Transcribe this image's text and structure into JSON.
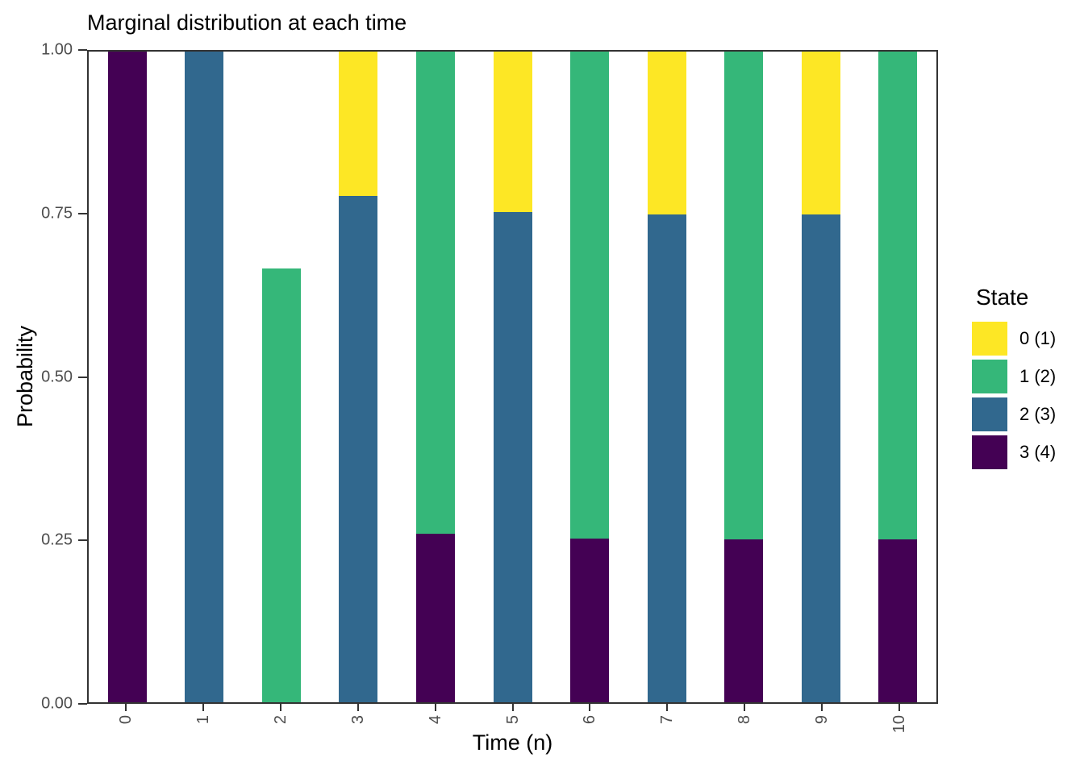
{
  "chart_data": {
    "type": "bar",
    "stacked": true,
    "title": "Marginal distribution at each time",
    "xlabel": "Time (n)",
    "ylabel": "Probability",
    "x": [
      "0",
      "1",
      "2",
      "3",
      "4",
      "5",
      "6",
      "7",
      "8",
      "9",
      "10"
    ],
    "ylim": [
      0,
      1
    ],
    "grid": false,
    "yticks": [
      {
        "label": "0.00",
        "value": 0.0
      },
      {
        "label": "0.25",
        "value": 0.25
      },
      {
        "label": "0.50",
        "value": 0.5
      },
      {
        "label": "0.75",
        "value": 0.75
      },
      {
        "label": "1.00",
        "value": 1.0
      }
    ],
    "legend": {
      "title": "State",
      "position": "right"
    },
    "series": [
      {
        "name": "0 (1)",
        "color": "#FDE725",
        "values": [
          0,
          0,
          0,
          0.2222,
          0,
          0.2469,
          0,
          0.2497,
          0,
          0.25,
          0
        ]
      },
      {
        "name": "1 (2)",
        "color": "#35B779",
        "values": [
          0,
          0,
          0.6667,
          0,
          0.7407,
          0,
          0.749,
          0,
          0.75,
          0,
          0.75
        ]
      },
      {
        "name": "2 (3)",
        "color": "#31688E",
        "values": [
          0,
          1,
          0,
          0.7778,
          0,
          0.7531,
          0,
          0.7503,
          0,
          0.75,
          0
        ]
      },
      {
        "name": "3 (4)",
        "color": "#440154",
        "values": [
          1,
          0,
          0,
          0,
          0.2593,
          0,
          0.251,
          0,
          0.25,
          0,
          0.25
        ]
      }
    ],
    "stack_order_bottom_to_top": [
      3,
      2,
      1,
      0
    ]
  },
  "styles": {
    "axis_line_color": "#333333",
    "tick_label_color": "#4d4d4d",
    "text_color": "#000000",
    "background": "#ffffff"
  }
}
